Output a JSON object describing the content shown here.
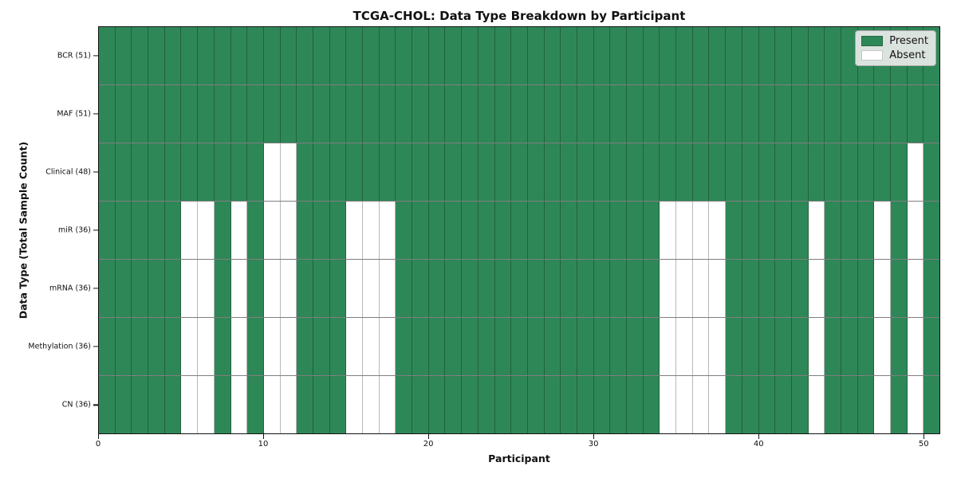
{
  "title": "TCGA-CHOL: Data Type Breakdown by Participant",
  "colors": {
    "present": "#2e8757",
    "absent": "#ffffff"
  },
  "legend": {
    "present_label": "Present",
    "absent_label": "Absent"
  },
  "chart_data": {
    "type": "heatmap",
    "title": "TCGA-CHOL: Data Type Breakdown by Participant",
    "xlabel": "Participant",
    "ylabel": "Data Type (Total Sample Count)",
    "n_participants": 51,
    "x_ticks": [
      0,
      10,
      20,
      30,
      40,
      50
    ],
    "x_range": [
      0,
      51
    ],
    "grid": true,
    "legend_position": "upper right",
    "legend_entries": [
      {
        "label": "Present",
        "color": "#2e8757"
      },
      {
        "label": "Absent",
        "color": "#ffffff"
      }
    ],
    "rows": [
      {
        "label": "BCR (51)",
        "data_type": "BCR",
        "total_sample_count": 51,
        "absent_participants": []
      },
      {
        "label": "MAF (51)",
        "data_type": "MAF",
        "total_sample_count": 51,
        "absent_participants": []
      },
      {
        "label": "Clinical (48)",
        "data_type": "Clinical",
        "total_sample_count": 48,
        "absent_participants": [
          10,
          11,
          49
        ]
      },
      {
        "label": "miR (36)",
        "data_type": "miR",
        "total_sample_count": 36,
        "absent_participants": [
          5,
          6,
          8,
          10,
          11,
          15,
          16,
          17,
          34,
          35,
          36,
          37,
          43,
          47,
          49
        ]
      },
      {
        "label": "mRNA (36)",
        "data_type": "mRNA",
        "total_sample_count": 36,
        "absent_participants": [
          5,
          6,
          8,
          10,
          11,
          15,
          16,
          17,
          34,
          35,
          36,
          37,
          43,
          47,
          49
        ]
      },
      {
        "label": "Methylation (36)",
        "data_type": "Methylation",
        "total_sample_count": 36,
        "absent_participants": [
          5,
          6,
          8,
          10,
          11,
          15,
          16,
          17,
          34,
          35,
          36,
          37,
          43,
          47,
          49
        ]
      },
      {
        "label": "CN (36)",
        "data_type": "CN",
        "total_sample_count": 36,
        "absent_participants": [
          5,
          6,
          8,
          10,
          11,
          15,
          16,
          17,
          34,
          35,
          36,
          37,
          43,
          47,
          49
        ]
      }
    ]
  }
}
